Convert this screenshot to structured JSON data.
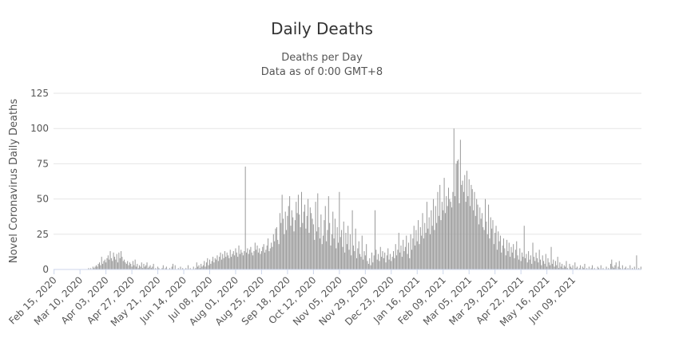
{
  "chart_data": {
    "type": "bar",
    "title": "Daily Deaths",
    "subtitle_lines": [
      "Deaths per Day",
      "Data as of 0:00 GMT+8"
    ],
    "ylabel": "Novel Coronavirus Daily Deaths",
    "xlabel": "",
    "ylim": [
      0,
      125
    ],
    "yticks": [
      0,
      25,
      50,
      75,
      100,
      125
    ],
    "grid": true,
    "legend": "none",
    "start_date": "2020-02-15",
    "day_step": 1,
    "xtick_labels": [
      "Feb 15, 2020",
      "Mar 10, 2020",
      "Apr 03, 2020",
      "Apr 27, 2020",
      "May 21, 2020",
      "Jun 14, 2020",
      "Jul 08, 2020",
      "Aug 01, 2020",
      "Aug 25, 2020",
      "Sep 18, 2020",
      "Oct 12, 2020",
      "Nov 05, 2020",
      "Nov 29, 2020",
      "Dec 23, 2020",
      "Jan 16, 2021",
      "Feb 09, 2021",
      "Mar 05, 2021",
      "Mar 29, 2021",
      "Apr 22, 2021",
      "May 16, 2021",
      "Jun 09, 2021"
    ],
    "series": [
      {
        "name": "Deaths per Day",
        "color": "#999999",
        "values": [
          0,
          0,
          0,
          0,
          0,
          0,
          0,
          0,
          0,
          0,
          0,
          0,
          0,
          0,
          0,
          0,
          0,
          0,
          0,
          0,
          0,
          0,
          0,
          0,
          0,
          0,
          0,
          0,
          0,
          0,
          0,
          0,
          1,
          0,
          1,
          0,
          2,
          1,
          2,
          3,
          2,
          4,
          5,
          3,
          9,
          4,
          6,
          7,
          5,
          8,
          10,
          7,
          13,
          8,
          6,
          12,
          9,
          7,
          11,
          5,
          12,
          8,
          13,
          9,
          6,
          7,
          5,
          4,
          6,
          3,
          5,
          4,
          2,
          6,
          3,
          7,
          2,
          4,
          1,
          3,
          2,
          5,
          1,
          4,
          2,
          3,
          5,
          1,
          2,
          3,
          1,
          2,
          4,
          0,
          1,
          0,
          2,
          1,
          0,
          0,
          1,
          3,
          0,
          1,
          2,
          0,
          0,
          1,
          0,
          2,
          4,
          0,
          3,
          0,
          0,
          1,
          0,
          2,
          0,
          1,
          0,
          0,
          1,
          0,
          3,
          0,
          1,
          0,
          0,
          2,
          0,
          1,
          5,
          2,
          3,
          1,
          4,
          2,
          3,
          6,
          2,
          5,
          8,
          3,
          7,
          4,
          6,
          9,
          5,
          8,
          7,
          10,
          6,
          9,
          12,
          7,
          11,
          8,
          13,
          9,
          12,
          10,
          8,
          14,
          9,
          11,
          13,
          10,
          15,
          12,
          9,
          17,
          11,
          14,
          12,
          10,
          13,
          73,
          12,
          15,
          11,
          14,
          16,
          12,
          10,
          13,
          19,
          14,
          17,
          12,
          15,
          11,
          13,
          16,
          18,
          12,
          14,
          17,
          22,
          13,
          15,
          19,
          16,
          25,
          20,
          29,
          30,
          21,
          18,
          40,
          33,
          53,
          36,
          25,
          41,
          28,
          38,
          45,
          52,
          31,
          42,
          37,
          27,
          35,
          48,
          40,
          53,
          39,
          30,
          55,
          33,
          41,
          46,
          29,
          38,
          50,
          26,
          44,
          40,
          36,
          32,
          21,
          48,
          27,
          54,
          30,
          22,
          39,
          18,
          24,
          35,
          45,
          20,
          28,
          52,
          33,
          17,
          25,
          41,
          22,
          36,
          15,
          30,
          19,
          55,
          23,
          28,
          16,
          34,
          12,
          26,
          18,
          31,
          14,
          25,
          10,
          42,
          17,
          13,
          29,
          8,
          15,
          20,
          11,
          9,
          24,
          7,
          13,
          10,
          18,
          6,
          4,
          8,
          3,
          12,
          5,
          10,
          42,
          14,
          7,
          11,
          6,
          16,
          9,
          13,
          8,
          12,
          5,
          10,
          15,
          7,
          11,
          6,
          9,
          13,
          8,
          18,
          10,
          14,
          26,
          12,
          17,
          9,
          21,
          13,
          16,
          24,
          11,
          19,
          8,
          25,
          14,
          22,
          31,
          17,
          28,
          20,
          35,
          18,
          30,
          24,
          40,
          22,
          33,
          26,
          48,
          29,
          37,
          25,
          42,
          31,
          50,
          28,
          45,
          33,
          55,
          38,
          60,
          35,
          48,
          42,
          65,
          40,
          52,
          45,
          58,
          50,
          48,
          44,
          55,
          100,
          52,
          75,
          77,
          78,
          47,
          92,
          60,
          63,
          55,
          67,
          48,
          70,
          52,
          64,
          45,
          60,
          57,
          42,
          55,
          38,
          50,
          46,
          32,
          44,
          36,
          40,
          30,
          28,
          50,
          34,
          25,
          46,
          22,
          37,
          29,
          35,
          18,
          26,
          31,
          14,
          27,
          20,
          24,
          12,
          17,
          22,
          15,
          10,
          21,
          13,
          19,
          9,
          16,
          12,
          18,
          8,
          14,
          20,
          10,
          7,
          15,
          6,
          12,
          9,
          31,
          8,
          11,
          5,
          13,
          7,
          10,
          4,
          19,
          9,
          6,
          12,
          8,
          5,
          14,
          7,
          3,
          10,
          6,
          4,
          11,
          2,
          8,
          5,
          3,
          16,
          4,
          7,
          2,
          6,
          3,
          9,
          1,
          5,
          2,
          4,
          1,
          3,
          2,
          6,
          1,
          0,
          4,
          2,
          1,
          3,
          0,
          5,
          1,
          2,
          0,
          1,
          3,
          0,
          2,
          1,
          4,
          0,
          1,
          0,
          2,
          0,
          1,
          3,
          0,
          1,
          0,
          0,
          2,
          1,
          0,
          3,
          0,
          1,
          0,
          0,
          2,
          0,
          1,
          0,
          4,
          7,
          2,
          1,
          3,
          5,
          0,
          2,
          6,
          1,
          0,
          3,
          0,
          1,
          2,
          0,
          1,
          0,
          3,
          0,
          1,
          0,
          2,
          0,
          10,
          0,
          1,
          0,
          2
        ]
      }
    ]
  }
}
